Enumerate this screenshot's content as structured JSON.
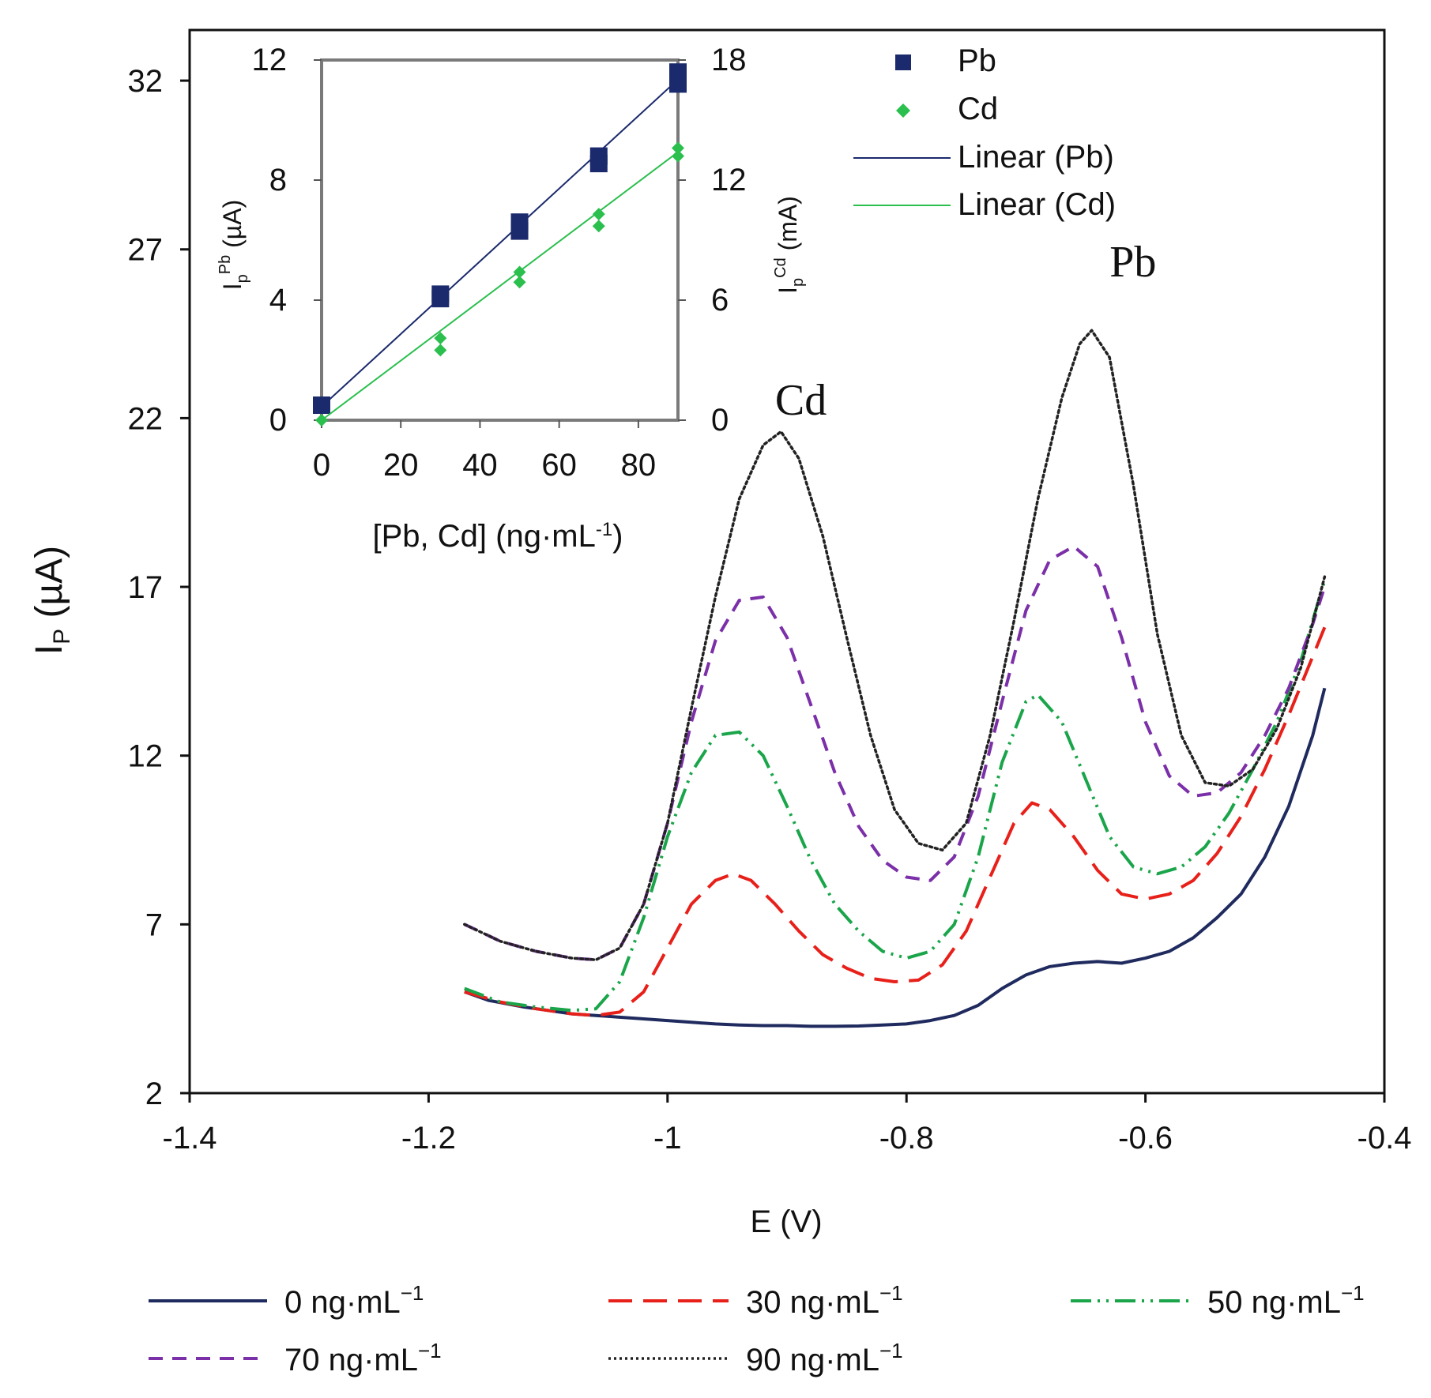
{
  "chart_data": [
    {
      "type": "line",
      "xlabel": "E (V)",
      "ylabel_main": "I",
      "ylabel_sub": "P",
      "ylabel_unit": " (µA)",
      "xlim": [
        -1.4,
        -0.4
      ],
      "ylim": [
        2,
        33.5
      ],
      "xticks": [
        -1.4,
        -1.2,
        -1,
        -0.8,
        -0.6,
        -0.4
      ],
      "xtick_labels": [
        "-1.4",
        "-1.2",
        "-1",
        "-0.8",
        "-0.6",
        "-0.4"
      ],
      "yticks": [
        2,
        7,
        12,
        17,
        22,
        27,
        32
      ],
      "ytick_labels": [
        "2",
        "7",
        "12",
        "17",
        "22",
        "27",
        "32"
      ],
      "peak_labels": [
        {
          "text": "Cd",
          "x": -0.91,
          "y": 22.1
        },
        {
          "text": "Pb",
          "x": -0.63,
          "y": 26.2
        }
      ],
      "legend_position": "bottom",
      "series": [
        {
          "name": "0 ng·mL",
          "superscript": "−1",
          "color": "#1f2a5e",
          "dash": "solid",
          "x": [
            -1.17,
            -1.15,
            -1.12,
            -1.1,
            -1.08,
            -1.06,
            -1.04,
            -1.02,
            -1.0,
            -0.98,
            -0.96,
            -0.94,
            -0.92,
            -0.9,
            -0.88,
            -0.86,
            -0.84,
            -0.82,
            -0.8,
            -0.78,
            -0.76,
            -0.74,
            -0.72,
            -0.7,
            -0.68,
            -0.66,
            -0.64,
            -0.62,
            -0.6,
            -0.58,
            -0.56,
            -0.54,
            -0.52,
            -0.5,
            -0.48,
            -0.46,
            -0.45
          ],
          "y": [
            5.0,
            4.75,
            4.55,
            4.45,
            4.35,
            4.3,
            4.25,
            4.2,
            4.15,
            4.1,
            4.05,
            4.02,
            4.0,
            4.0,
            3.98,
            3.98,
            3.99,
            4.02,
            4.05,
            4.15,
            4.3,
            4.6,
            5.1,
            5.5,
            5.75,
            5.85,
            5.9,
            5.85,
            6.0,
            6.2,
            6.6,
            7.2,
            7.9,
            9.0,
            10.5,
            12.6,
            14.0
          ]
        },
        {
          "name": "30 ng·mL",
          "superscript": "−1",
          "color": "#e8201a",
          "dash": "long",
          "x": [
            -1.17,
            -1.14,
            -1.11,
            -1.08,
            -1.06,
            -1.04,
            -1.02,
            -1.0,
            -0.98,
            -0.96,
            -0.945,
            -0.93,
            -0.91,
            -0.89,
            -0.87,
            -0.85,
            -0.83,
            -0.81,
            -0.79,
            -0.77,
            -0.75,
            -0.73,
            -0.71,
            -0.695,
            -0.68,
            -0.66,
            -0.64,
            -0.62,
            -0.6,
            -0.58,
            -0.56,
            -0.54,
            -0.52,
            -0.5,
            -0.48,
            -0.45
          ],
          "y": [
            5.0,
            4.7,
            4.5,
            4.35,
            4.3,
            4.4,
            5.0,
            6.3,
            7.6,
            8.3,
            8.5,
            8.3,
            7.6,
            6.8,
            6.1,
            5.7,
            5.4,
            5.3,
            5.35,
            5.8,
            6.8,
            8.4,
            10.0,
            10.6,
            10.4,
            9.6,
            8.6,
            7.9,
            7.75,
            7.9,
            8.3,
            9.1,
            10.2,
            11.6,
            13.2,
            15.8
          ]
        },
        {
          "name": "50 ng·mL",
          "superscript": "−1",
          "color": "#1aa54a",
          "dash": "dashdotdot",
          "x": [
            -1.17,
            -1.14,
            -1.11,
            -1.08,
            -1.06,
            -1.04,
            -1.02,
            -1.0,
            -0.98,
            -0.96,
            -0.94,
            -0.92,
            -0.9,
            -0.88,
            -0.86,
            -0.84,
            -0.82,
            -0.8,
            -0.78,
            -0.76,
            -0.74,
            -0.72,
            -0.7,
            -0.69,
            -0.67,
            -0.65,
            -0.63,
            -0.61,
            -0.59,
            -0.57,
            -0.55,
            -0.53,
            -0.51,
            -0.49,
            -0.47,
            -0.45
          ],
          "y": [
            5.1,
            4.7,
            4.55,
            4.45,
            4.5,
            5.3,
            7.2,
            9.6,
            11.5,
            12.6,
            12.7,
            12.0,
            10.5,
            8.9,
            7.6,
            6.8,
            6.2,
            6.0,
            6.2,
            7.0,
            9.0,
            11.8,
            13.6,
            13.8,
            13.0,
            11.3,
            9.6,
            8.7,
            8.5,
            8.7,
            9.3,
            10.3,
            11.6,
            13.0,
            14.8,
            17.2
          ]
        },
        {
          "name": "70 ng·mL",
          "superscript": "−1",
          "color": "#7b2fa8",
          "dash": "medium",
          "x": [
            -1.17,
            -1.14,
            -1.11,
            -1.08,
            -1.06,
            -1.04,
            -1.02,
            -1.0,
            -0.98,
            -0.96,
            -0.94,
            -0.92,
            -0.9,
            -0.88,
            -0.86,
            -0.84,
            -0.82,
            -0.8,
            -0.78,
            -0.76,
            -0.74,
            -0.72,
            -0.7,
            -0.68,
            -0.66,
            -0.64,
            -0.62,
            -0.6,
            -0.58,
            -0.56,
            -0.54,
            -0.52,
            -0.5,
            -0.48,
            -0.46,
            -0.45
          ],
          "y": [
            7.0,
            6.5,
            6.2,
            6.0,
            5.95,
            6.3,
            7.6,
            10.0,
            13.0,
            15.4,
            16.6,
            16.7,
            15.5,
            13.5,
            11.5,
            9.9,
            8.9,
            8.4,
            8.3,
            9.0,
            10.8,
            13.6,
            16.3,
            17.8,
            18.2,
            17.6,
            15.5,
            13.0,
            11.4,
            10.8,
            10.9,
            11.5,
            12.6,
            14.0,
            15.9,
            17.0
          ]
        },
        {
          "name": "90 ng·mL",
          "superscript": "−1",
          "color": "#222222",
          "dash": "dotted",
          "x": [
            -1.17,
            -1.14,
            -1.11,
            -1.08,
            -1.06,
            -1.04,
            -1.02,
            -1.0,
            -0.98,
            -0.96,
            -0.94,
            -0.92,
            -0.905,
            -0.89,
            -0.87,
            -0.85,
            -0.83,
            -0.81,
            -0.79,
            -0.77,
            -0.75,
            -0.73,
            -0.71,
            -0.69,
            -0.67,
            -0.655,
            -0.645,
            -0.63,
            -0.61,
            -0.59,
            -0.57,
            -0.55,
            -0.53,
            -0.51,
            -0.49,
            -0.47,
            -0.45
          ],
          "y": [
            7.0,
            6.5,
            6.2,
            6.0,
            5.95,
            6.3,
            7.6,
            10.0,
            13.4,
            16.7,
            19.6,
            21.2,
            21.6,
            20.8,
            18.5,
            15.5,
            12.6,
            10.4,
            9.4,
            9.2,
            10.0,
            12.6,
            16.0,
            19.6,
            22.6,
            24.2,
            24.6,
            23.8,
            20.0,
            15.6,
            12.6,
            11.2,
            11.1,
            11.6,
            12.8,
            14.6,
            17.3
          ]
        }
      ]
    },
    {
      "type": "scatter",
      "xlabel": "[Pb, Cd] (ng·mL",
      "xlabel_sup": "-1",
      "xlabel_end": ")",
      "ylabel_left": "I",
      "ylabel_left_sub": "p",
      "ylabel_left_sup": "Pb",
      "ylabel_left_unit": " (µA)",
      "ylabel_right": "I",
      "ylabel_right_sub": "p",
      "ylabel_right_sup": "Cd",
      "ylabel_right_unit": " (mA)",
      "xlim": [
        0,
        90
      ],
      "ylim_left": [
        0,
        12
      ],
      "ylim_right": [
        0,
        18
      ],
      "xticks": [
        0,
        20,
        40,
        60,
        80
      ],
      "xtick_labels": [
        "0",
        "20",
        "40",
        "60",
        "80"
      ],
      "yticks_left": [
        0,
        4,
        8,
        12
      ],
      "ytick_left_labels": [
        "0",
        "4",
        "8",
        "12"
      ],
      "yticks_right": [
        0,
        6,
        12,
        18
      ],
      "ytick_right_labels": [
        "0",
        "6",
        "12",
        "18"
      ],
      "legend_position": "top-right",
      "legend": [
        "Pb",
        "Cd",
        "Linear (Pb)",
        "Linear (Cd)"
      ],
      "series": [
        {
          "name": "Pb",
          "axis": "left",
          "color": "#1a2a6c",
          "marker": "square",
          "points": [
            [
              0,
              0.5
            ],
            [
              30,
              4.2
            ],
            [
              30,
              4.05
            ],
            [
              50,
              6.6
            ],
            [
              50,
              6.3
            ],
            [
              70,
              8.8
            ],
            [
              70,
              8.55
            ],
            [
              90,
              11.6
            ],
            [
              90,
              11.2
            ]
          ],
          "fit": [
            [
              0,
              0.45
            ],
            [
              90,
              11.35
            ]
          ]
        },
        {
          "name": "Cd",
          "axis": "right",
          "color": "#2bbf4e",
          "marker": "diamond",
          "points": [
            [
              0,
              0.0
            ],
            [
              30,
              4.1
            ],
            [
              30,
              3.5
            ],
            [
              50,
              7.4
            ],
            [
              50,
              6.9
            ],
            [
              70,
              10.3
            ],
            [
              70,
              9.7
            ],
            [
              90,
              13.6
            ],
            [
              90,
              13.2
            ]
          ],
          "fit": [
            [
              0,
              0.0
            ],
            [
              90,
              13.4
            ]
          ]
        }
      ]
    }
  ]
}
